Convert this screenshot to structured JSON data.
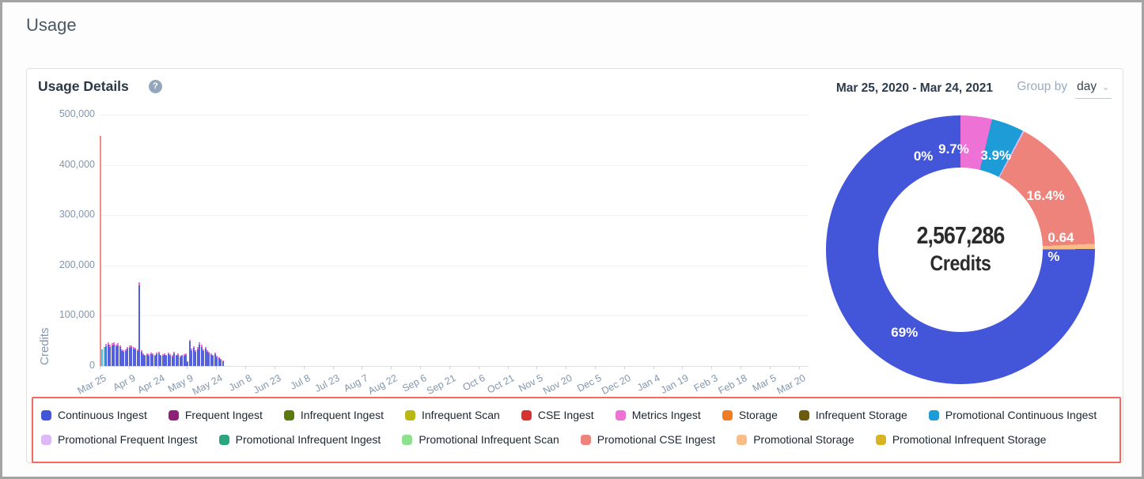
{
  "page": {
    "title": "Usage"
  },
  "panel": {
    "title": "Usage Details",
    "help_icon": "question-mark",
    "date_range": "Mar 25, 2020 - Mar 24, 2021",
    "group_by_label": "Group by",
    "group_by_value": "day"
  },
  "colors": {
    "legend_border": "#f2695e",
    "axis_text": "#8296ad",
    "palette": {
      "continuous_ingest": "#4355d8",
      "frequent_ingest": "#8e2077",
      "infrequent_ingest": "#5a7a0c",
      "infrequent_scan": "#b9b812",
      "cse_ingest": "#d63230",
      "metrics_ingest": "#ee71d5",
      "storage": "#f07d23",
      "infrequent_storage": "#6d5a11",
      "promotional_continuous_ingest": "#1e9cd7",
      "promotional_frequent_ingest": "#ddb8f6",
      "promotional_infrequent_ingest": "#2aa67e",
      "promotional_infrequent_scan": "#8ce08f",
      "promotional_cse_ingest": "#ee837b",
      "promotional_storage": "#f9bd85",
      "promotional_infrequent_storage": "#d8b422"
    },
    "bar_colors": {
      "cont": "#5560dd",
      "pcont": "#49c2ee",
      "met": "#ee71d5",
      "pcse": "#f18d86"
    }
  },
  "chart_data": [
    {
      "type": "bar",
      "stacked": true,
      "ylabel": "Credits",
      "ylim": [
        0,
        500000
      ],
      "grid": "horizontal",
      "y_ticks": [
        {
          "v": 0,
          "label": "0"
        },
        {
          "v": 100000,
          "label": "100,000"
        },
        {
          "v": 200000,
          "label": "200,000"
        },
        {
          "v": 300000,
          "label": "300,000"
        },
        {
          "v": 400000,
          "label": "400,000"
        },
        {
          "v": 500000,
          "label": "500,000"
        }
      ],
      "total_days": 365,
      "tick_interval_days": 15,
      "x_ticks": [
        "Mar 25",
        "Apr 9",
        "Apr 24",
        "May 9",
        "May 24",
        "Jun 8",
        "Jun 23",
        "Jul 8",
        "Jul 23",
        "Aug 7",
        "Aug 22",
        "Sep 6",
        "Sep 21",
        "Oct 6",
        "Oct 21",
        "Nov 5",
        "Nov 20",
        "Dec 5",
        "Dec 20",
        "Jan 4",
        "Jan 19",
        "Feb 3",
        "Feb 18",
        "Mar 5",
        "Mar 20"
      ],
      "series_keys": {
        "cont": "Continuous Ingest",
        "pcont": "Promotional Continuous Ingest",
        "met": "Metrics Ingest",
        "pcse": "Promotional CSE Ingest"
      },
      "bars": [
        [
          [
            "pcse",
            458000
          ]
        ],
        [
          [
            "pcont",
            33000
          ]
        ],
        [
          [
            "pcont",
            36000
          ],
          [
            "met",
            2500
          ]
        ],
        [
          [
            "cont",
            40000
          ],
          [
            "met",
            4000
          ]
        ],
        [
          [
            "cont",
            43000
          ],
          [
            "met",
            4000
          ]
        ],
        [
          [
            "cont",
            38000
          ],
          [
            "met",
            5000
          ]
        ],
        [
          [
            "cont",
            41000
          ],
          [
            "met",
            4000
          ]
        ],
        [
          [
            "cont",
            42000
          ],
          [
            "met",
            4500
          ]
        ],
        [
          [
            "cont",
            39000
          ],
          [
            "met",
            4000
          ]
        ],
        [
          [
            "cont",
            41000
          ],
          [
            "met",
            5000
          ]
        ],
        [
          [
            "cont",
            37000
          ],
          [
            "met",
            4000
          ]
        ],
        [
          [
            "cont",
            30000
          ],
          [
            "met",
            3500
          ]
        ],
        [
          [
            "cont",
            28000
          ],
          [
            "met",
            3000
          ]
        ],
        [
          [
            "cont",
            30000
          ],
          [
            "met",
            3500
          ]
        ],
        [
          [
            "cont",
            34000
          ],
          [
            "met",
            4000
          ]
        ],
        [
          [
            "cont",
            36000
          ],
          [
            "met",
            4500
          ]
        ],
        [
          [
            "cont",
            37000
          ],
          [
            "met",
            4000
          ]
        ],
        [
          [
            "cont",
            35000
          ],
          [
            "met",
            3500
          ]
        ],
        [
          [
            "cont",
            33000
          ],
          [
            "met",
            3500
          ]
        ],
        [
          [
            "cont",
            30000
          ],
          [
            "met",
            3000
          ]
        ],
        [
          [
            "cont",
            161000
          ],
          [
            "met",
            6000
          ]
        ],
        [
          [
            "cont",
            28000
          ],
          [
            "met",
            3000
          ]
        ],
        [
          [
            "cont",
            22000
          ],
          [
            "met",
            3000
          ]
        ],
        [
          [
            "cont",
            20000
          ],
          [
            "met",
            2500
          ]
        ],
        [
          [
            "cont",
            22000
          ],
          [
            "met",
            3000
          ]
        ],
        [
          [
            "cont",
            21000
          ],
          [
            "met",
            2500
          ]
        ],
        [
          [
            "cont",
            23000
          ],
          [
            "met",
            3000
          ]
        ],
        [
          [
            "cont",
            22000
          ],
          [
            "met",
            2500
          ]
        ],
        [
          [
            "cont",
            20000
          ],
          [
            "met",
            2500
          ]
        ],
        [
          [
            "cont",
            23000
          ],
          [
            "met",
            3500
          ]
        ],
        [
          [
            "cont",
            25000
          ],
          [
            "met",
            3000
          ]
        ],
        [
          [
            "cont",
            20000
          ],
          [
            "met",
            2500
          ]
        ],
        [
          [
            "cont",
            21000
          ],
          [
            "met",
            2500
          ]
        ],
        [
          [
            "cont",
            22000
          ],
          [
            "met",
            3000
          ]
        ],
        [
          [
            "cont",
            20000
          ],
          [
            "met",
            2500
          ]
        ],
        [
          [
            "cont",
            23000
          ],
          [
            "met",
            3000
          ]
        ],
        [
          [
            "cont",
            21000
          ],
          [
            "met",
            2500
          ]
        ],
        [
          [
            "cont",
            19000
          ],
          [
            "met",
            2500
          ]
        ],
        [
          [
            "cont",
            25000
          ],
          [
            "met",
            3500
          ]
        ],
        [
          [
            "cont",
            20000
          ],
          [
            "met",
            2500
          ]
        ],
        [
          [
            "cont",
            22000
          ],
          [
            "met",
            3000
          ]
        ],
        [
          [
            "cont",
            18000
          ],
          [
            "met",
            2500
          ]
        ],
        [
          [
            "cont",
            20000
          ],
          [
            "met",
            2500
          ]
        ],
        [
          [
            "cont",
            21000
          ],
          [
            "met",
            3000
          ]
        ],
        [
          [
            "cont",
            22000
          ],
          [
            "met",
            3000
          ]
        ],
        [
          [
            "cont",
            8000
          ],
          [
            "met",
            2000
          ]
        ],
        [
          [
            "cont",
            48000
          ],
          [
            "met",
            4500
          ]
        ],
        [
          [
            "cont",
            30000
          ],
          [
            "met",
            4000
          ]
        ],
        [
          [
            "cont",
            36000
          ],
          [
            "met",
            4000
          ]
        ],
        [
          [
            "cont",
            28000
          ],
          [
            "met",
            3000
          ]
        ],
        [
          [
            "cont",
            33000
          ],
          [
            "met",
            4000
          ]
        ],
        [
          [
            "cont",
            43000
          ],
          [
            "met",
            4500
          ]
        ],
        [
          [
            "cont",
            38000
          ],
          [
            "met",
            4000
          ]
        ],
        [
          [
            "cont",
            30000
          ],
          [
            "met",
            3500
          ]
        ],
        [
          [
            "cont",
            35000
          ],
          [
            "met",
            3500
          ]
        ],
        [
          [
            "cont",
            28000
          ],
          [
            "met",
            3000
          ]
        ],
        [
          [
            "cont",
            25000
          ],
          [
            "met",
            3000
          ]
        ],
        [
          [
            "cont",
            22000
          ],
          [
            "met",
            2500
          ]
        ],
        [
          [
            "cont",
            20000
          ],
          [
            "met",
            2500
          ]
        ],
        [
          [
            "cont",
            23000
          ],
          [
            "met",
            3000
          ]
        ],
        [
          [
            "cont",
            18000
          ],
          [
            "met",
            2000
          ]
        ],
        [
          [
            "cont",
            15000
          ],
          [
            "met",
            2000
          ]
        ],
        [
          [
            "cont",
            12000
          ],
          [
            "met",
            1500
          ]
        ],
        [
          [
            "cont",
            9000
          ],
          [
            "met",
            1500
          ]
        ]
      ]
    },
    {
      "type": "donut",
      "center_value": "2,567,286",
      "center_label": "Credits",
      "start_angle_deg": -22,
      "slices": [
        {
          "name": "Promotional Frequent Ingest",
          "pct": 0,
          "label": "0%",
          "color_key": "promotional_frequent_ingest"
        },
        {
          "name": "Metrics Ingest",
          "pct": 9.7,
          "label": "9.7%",
          "color_key": "metrics_ingest"
        },
        {
          "name": "Promotional Continuous Ingest",
          "pct": 3.9,
          "label": "3.9%",
          "color_key": "promotional_continuous_ingest"
        },
        {
          "name": "Promotional Frequent Ingest",
          "pct": 0,
          "label": "",
          "color_key": "promotional_frequent_ingest"
        },
        {
          "name": "Promotional CSE Ingest",
          "pct": 16.4,
          "label": "16.4%",
          "color_key": "promotional_cse_ingest"
        },
        {
          "name": "Promotional Storage",
          "pct": 0.64,
          "label": "0.64 %",
          "color_key": "promotional_storage"
        },
        {
          "name": "Continuous Ingest",
          "pct": 69,
          "label": "69%",
          "color_key": "continuous_ingest"
        }
      ]
    }
  ],
  "legend": {
    "rows": [
      [
        {
          "label": "Continuous Ingest",
          "color_key": "continuous_ingest"
        },
        {
          "label": "Frequent Ingest",
          "color_key": "frequent_ingest"
        },
        {
          "label": "Infrequent Ingest",
          "color_key": "infrequent_ingest"
        },
        {
          "label": "Infrequent Scan",
          "color_key": "infrequent_scan"
        },
        {
          "label": "CSE Ingest",
          "color_key": "cse_ingest"
        },
        {
          "label": "Metrics Ingest",
          "color_key": "metrics_ingest"
        },
        {
          "label": "Storage",
          "color_key": "storage"
        },
        {
          "label": "Infrequent Storage",
          "color_key": "infrequent_storage"
        },
        {
          "label": "Promotional Continuous Ingest",
          "color_key": "promotional_continuous_ingest"
        }
      ],
      [
        {
          "label": "Promotional Frequent Ingest",
          "color_key": "promotional_frequent_ingest"
        },
        {
          "label": "Promotional Infrequent Ingest",
          "color_key": "promotional_infrequent_ingest"
        },
        {
          "label": "Promotional Infrequent Scan",
          "color_key": "promotional_infrequent_scan"
        },
        {
          "label": "Promotional CSE Ingest",
          "color_key": "promotional_cse_ingest"
        },
        {
          "label": "Promotional Storage",
          "color_key": "promotional_storage"
        },
        {
          "label": "Promotional Infrequent Storage",
          "color_key": "promotional_infrequent_storage"
        }
      ]
    ]
  }
}
